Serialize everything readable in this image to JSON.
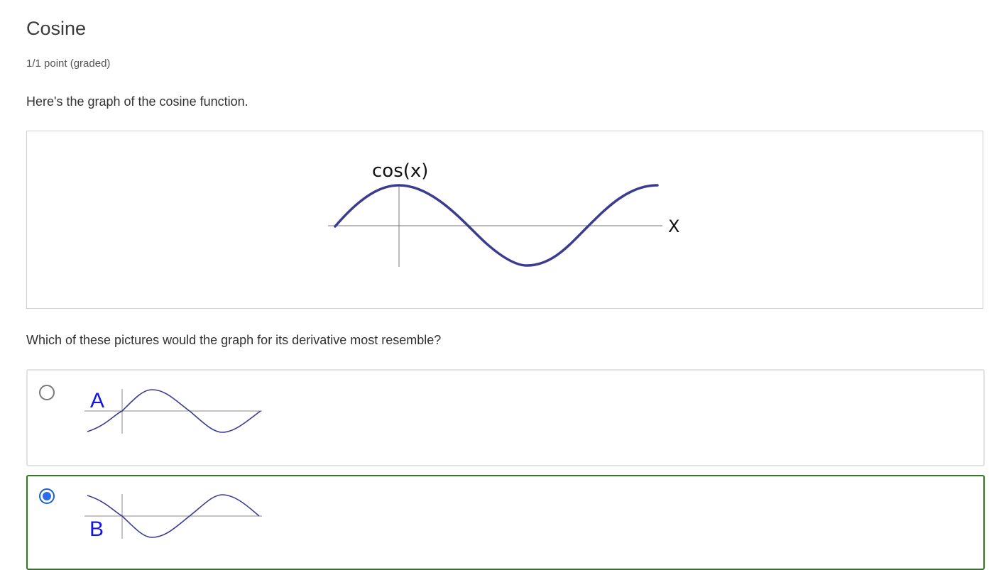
{
  "problem": {
    "title": "Cosine",
    "points": "1/1 point (graded)",
    "intro": "Here's the graph of the cosine function.",
    "question": "Which of these pictures would the graph for its derivative most resemble?"
  },
  "graph": {
    "function_label": "cos(x)",
    "axis_label": "X",
    "curve_color": "#3b3b8f"
  },
  "choices": [
    {
      "id": "A",
      "label": "A",
      "selected": false,
      "curve": "sine-like"
    },
    {
      "id": "B",
      "label": "B",
      "selected": true,
      "curve": "negative-sine-like"
    }
  ],
  "colors": {
    "label_blue": "#1414e6",
    "selected_border": "#2d7a1f",
    "radio_selected": "#2f6de8"
  }
}
